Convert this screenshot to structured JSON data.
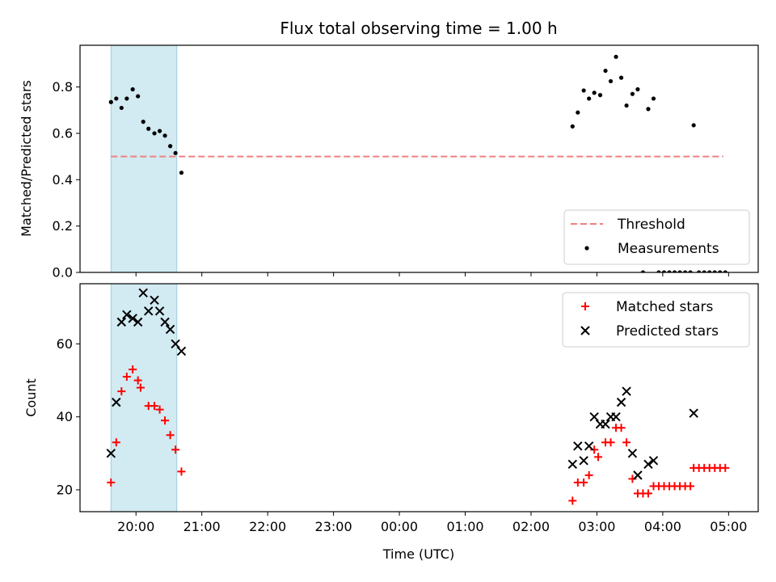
{
  "chart_data": [
    {
      "type": "scatter",
      "title": "Flux total observing time = 1.00 h",
      "xlabel": "",
      "ylabel": "Matched/Predicted stars",
      "x_unit": "hours after 00:00 UTC (negative = previous evening)",
      "xlim": [
        -4.85,
        5.45
      ],
      "ylim": [
        0,
        0.98
      ],
      "yticks": [
        0.0,
        0.2,
        0.4,
        0.6,
        0.8
      ],
      "ytick_labels": [
        "0.0",
        "0.2",
        "0.4",
        "0.6",
        "0.8"
      ],
      "highlight_span": [
        -4.38,
        -3.38
      ],
      "threshold": {
        "name": "Threshold",
        "y": 0.5,
        "x_range": [
          -4.38,
          4.92
        ],
        "color": "#f08080"
      },
      "legend": {
        "position": "lower-right",
        "entries": [
          "Threshold",
          "Measurements"
        ]
      },
      "series": [
        {
          "name": "Measurements",
          "color": "#000000",
          "points": [
            [
              -4.38,
              0.735
            ],
            [
              -4.3,
              0.75
            ],
            [
              -4.22,
              0.71
            ],
            [
              -4.14,
              0.75
            ],
            [
              -4.05,
              0.79
            ],
            [
              -3.97,
              0.76
            ],
            [
              -3.89,
              0.65
            ],
            [
              -3.81,
              0.62
            ],
            [
              -3.72,
              0.6
            ],
            [
              -3.64,
              0.61
            ],
            [
              -3.56,
              0.59
            ],
            [
              -3.48,
              0.545
            ],
            [
              -3.4,
              0.515
            ],
            [
              -3.31,
              0.43
            ],
            [
              2.63,
              0.63
            ],
            [
              2.71,
              0.69
            ],
            [
              2.8,
              0.785
            ],
            [
              2.88,
              0.75
            ],
            [
              2.96,
              0.775
            ],
            [
              3.05,
              0.765
            ],
            [
              3.13,
              0.87
            ],
            [
              3.21,
              0.825
            ],
            [
              3.29,
              0.93
            ],
            [
              3.37,
              0.84
            ],
            [
              3.45,
              0.72
            ],
            [
              3.54,
              0.77
            ],
            [
              3.62,
              0.79
            ],
            [
              3.78,
              0.705
            ],
            [
              3.86,
              0.75
            ],
            [
              4.47,
              0.635
            ],
            [
              3.7,
              0.0
            ],
            [
              3.94,
              0.0
            ],
            [
              4.02,
              0.0
            ],
            [
              4.1,
              0.0
            ],
            [
              4.18,
              0.0
            ],
            [
              4.26,
              0.0
            ],
            [
              4.34,
              0.0
            ],
            [
              4.42,
              0.0
            ],
            [
              4.55,
              0.0
            ],
            [
              4.63,
              0.0
            ],
            [
              4.71,
              0.0
            ],
            [
              4.79,
              0.0
            ],
            [
              4.87,
              0.0
            ],
            [
              4.95,
              0.0
            ]
          ]
        }
      ]
    },
    {
      "type": "scatter",
      "title": "",
      "xlabel": "Time (UTC)",
      "ylabel": "Count",
      "x_unit": "hours after 00:00 UTC (negative = previous evening)",
      "xlim": [
        -4.85,
        5.45
      ],
      "ylim": [
        14,
        76.5
      ],
      "yticks": [
        20,
        40,
        60
      ],
      "ytick_labels": [
        "20",
        "40",
        "60"
      ],
      "xticks": [
        -4,
        -3,
        -2,
        -1,
        0,
        1,
        2,
        3,
        4,
        5
      ],
      "xtick_labels": [
        "20:00",
        "21:00",
        "22:00",
        "23:00",
        "00:00",
        "01:00",
        "02:00",
        "03:00",
        "04:00",
        "05:00"
      ],
      "highlight_span": [
        -4.38,
        -3.38
      ],
      "legend": {
        "position": "top-right",
        "entries": [
          "Matched stars",
          "Predicted stars"
        ]
      },
      "series": [
        {
          "name": "Matched stars",
          "marker": "plus",
          "color": "#ff0000",
          "points": [
            [
              -4.38,
              22
            ],
            [
              -4.3,
              33
            ],
            [
              -4.22,
              47
            ],
            [
              -4.14,
              51
            ],
            [
              -4.05,
              53
            ],
            [
              -3.97,
              50
            ],
            [
              -3.93,
              48
            ],
            [
              -3.81,
              43
            ],
            [
              -3.72,
              43
            ],
            [
              -3.64,
              42
            ],
            [
              -3.56,
              39
            ],
            [
              -3.48,
              35
            ],
            [
              -3.4,
              31
            ],
            [
              -3.31,
              25
            ],
            [
              2.63,
              17
            ],
            [
              2.71,
              22
            ],
            [
              2.8,
              22
            ],
            [
              2.88,
              24
            ],
            [
              2.96,
              31
            ],
            [
              3.02,
              29
            ],
            [
              3.13,
              33
            ],
            [
              3.21,
              33
            ],
            [
              3.29,
              37
            ],
            [
              3.37,
              37
            ],
            [
              3.45,
              33
            ],
            [
              3.54,
              23
            ],
            [
              3.62,
              19
            ],
            [
              3.7,
              19
            ],
            [
              3.78,
              19
            ],
            [
              3.86,
              21
            ],
            [
              3.94,
              21
            ],
            [
              4.02,
              21
            ],
            [
              4.1,
              21
            ],
            [
              4.18,
              21
            ],
            [
              4.26,
              21
            ],
            [
              4.34,
              21
            ],
            [
              4.42,
              21
            ],
            [
              4.47,
              26
            ],
            [
              4.55,
              26
            ],
            [
              4.63,
              26
            ],
            [
              4.71,
              26
            ],
            [
              4.79,
              26
            ],
            [
              4.87,
              26
            ],
            [
              4.95,
              26
            ]
          ]
        },
        {
          "name": "Predicted stars",
          "marker": "x",
          "color": "#000000",
          "points": [
            [
              -4.38,
              30
            ],
            [
              -4.3,
              44
            ],
            [
              -4.22,
              66
            ],
            [
              -4.14,
              68
            ],
            [
              -4.05,
              67
            ],
            [
              -3.97,
              66
            ],
            [
              -3.89,
              74
            ],
            [
              -3.81,
              69
            ],
            [
              -3.72,
              72
            ],
            [
              -3.64,
              69
            ],
            [
              -3.56,
              66
            ],
            [
              -3.48,
              64
            ],
            [
              -3.4,
              60
            ],
            [
              -3.31,
              58
            ],
            [
              2.63,
              27
            ],
            [
              2.71,
              32
            ],
            [
              2.8,
              28
            ],
            [
              2.88,
              32
            ],
            [
              2.96,
              40
            ],
            [
              3.05,
              38
            ],
            [
              3.13,
              38
            ],
            [
              3.21,
              40
            ],
            [
              3.29,
              40
            ],
            [
              3.37,
              44
            ],
            [
              3.45,
              47
            ],
            [
              3.54,
              30
            ],
            [
              3.62,
              24
            ],
            [
              3.78,
              27
            ],
            [
              3.86,
              28
            ],
            [
              4.47,
              41
            ]
          ]
        }
      ]
    }
  ]
}
